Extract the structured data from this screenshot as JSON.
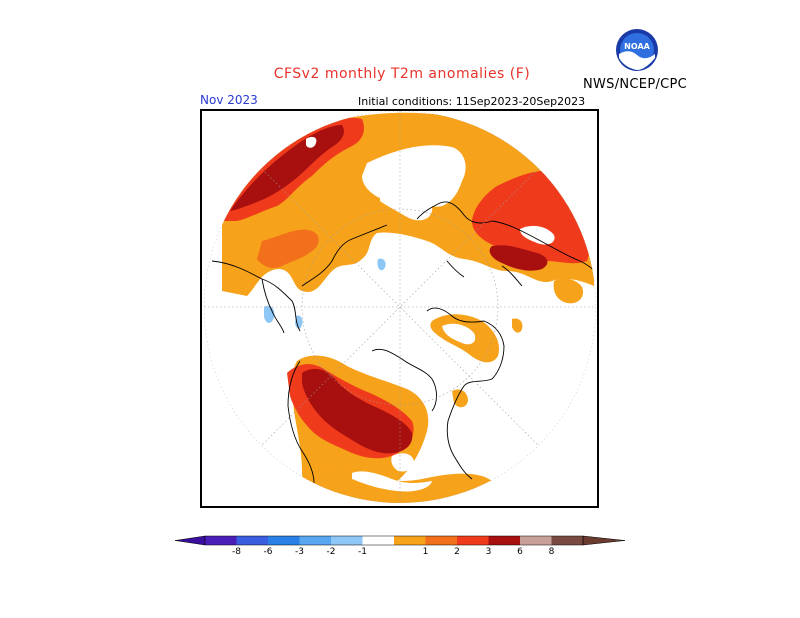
{
  "header": {
    "title": "CFSv2 monthly T2m anomalies (F)",
    "agency": "NWS/NCEP/CPC",
    "logo_text": "NOAA",
    "month": "Nov 2023",
    "initial_conditions": "Initial conditions: 11Sep2023-20Sep2023"
  },
  "colorbar": {
    "labels": [
      "-8",
      "-6",
      "-3",
      "-2",
      "-1",
      "1",
      "2",
      "3",
      "6",
      "8"
    ],
    "colors": [
      "#4a1fb8",
      "#3a5ee0",
      "#2a80e6",
      "#58a6f0",
      "#8ec6f6",
      "#ffffff",
      "#f7a21b",
      "#f2701b",
      "#ef3a1b",
      "#a80f0f",
      "#c8a09a",
      "#7a4a40"
    ],
    "arrow_left_color": "#3b0f9e",
    "arrow_right_color": "#6b3b30"
  },
  "map": {
    "projection": "north-polar-stereographic",
    "colors": {
      "neutral": "#ffffff",
      "orange_1_2": "#f7a21b",
      "darkorange_2_3": "#f2701b",
      "red_3_6": "#ef3a1b",
      "darkred_6_8": "#a80f0f",
      "lightblue_-2_-1": "#8ec6f6"
    }
  }
}
